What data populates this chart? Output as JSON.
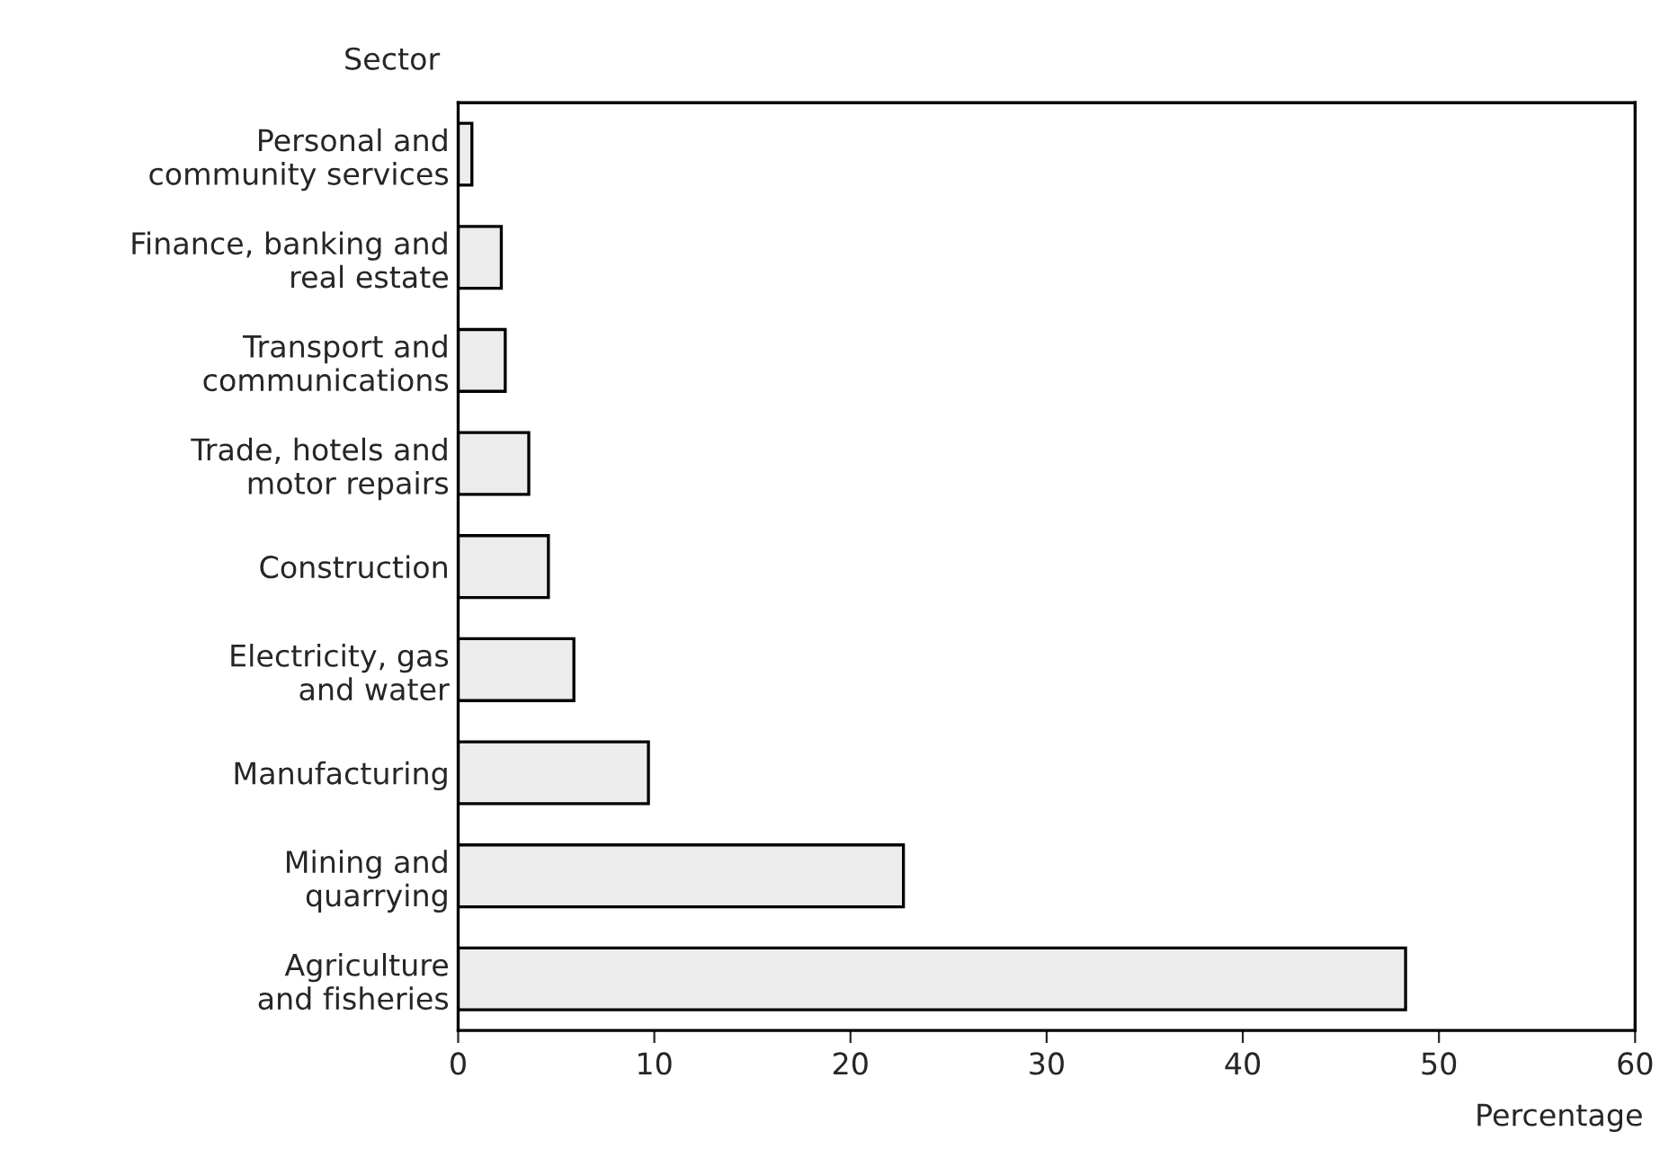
{
  "chart_data": {
    "type": "bar",
    "orientation": "horizontal",
    "ylabel": "Sector",
    "xlabel": "Percentage",
    "categories": [
      "Personal and\ncommunity services",
      "Finance, banking and\nreal estate",
      "Transport and\ncommunications",
      "Trade, hotels and\nmotor repairs",
      "Construction",
      "Electricity, gas\nand water",
      "Manufacturing",
      "Mining and\nquarrying",
      "Agriculture\nand fisheries"
    ],
    "values": [
      0.7,
      2.2,
      2.4,
      3.6,
      4.6,
      5.9,
      9.7,
      22.7,
      48.3
    ],
    "color": "#ececec",
    "xlim": [
      0,
      60
    ],
    "xticks": [
      0,
      10,
      20,
      30,
      40,
      50,
      60
    ],
    "grid": false
  }
}
